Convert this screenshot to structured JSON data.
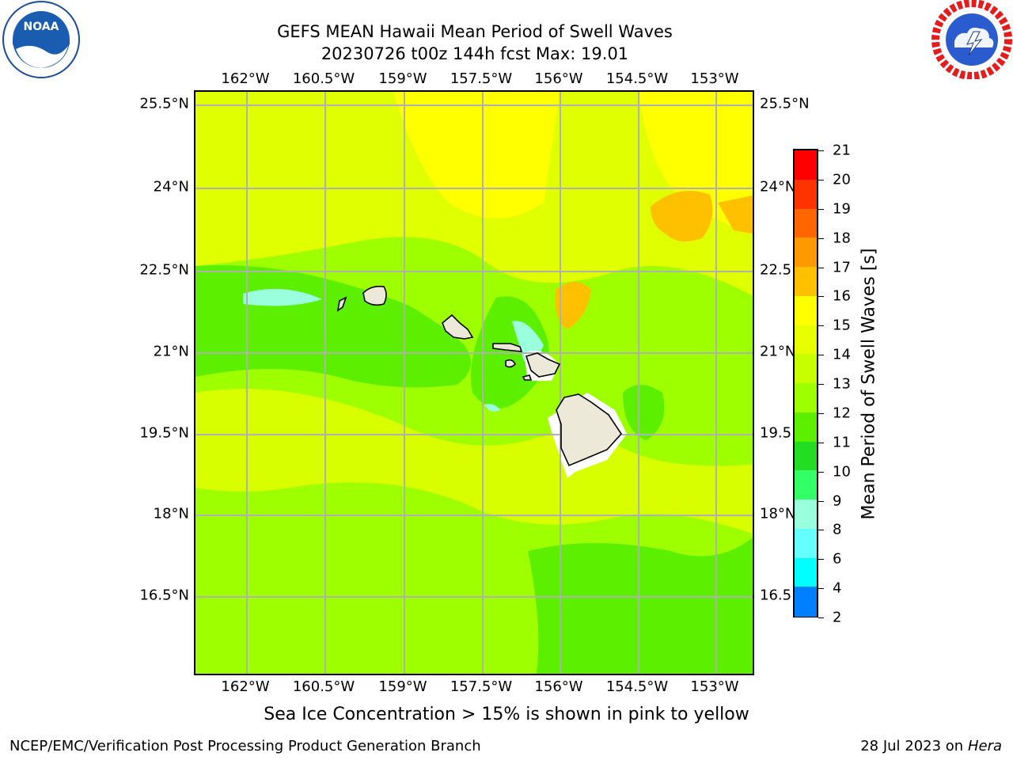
{
  "title": {
    "line1": "GEFS MEAN Hawaii Mean Period of Swell Waves",
    "line2": "20230726 t00z 144h fcst   Max: 19.01"
  },
  "logos": {
    "left": "noaa-logo",
    "left_text": "NOAA",
    "right": "nws-logo"
  },
  "map": {
    "lon_labels": [
      "162°W",
      "160.5°W",
      "159°W",
      "157.5°W",
      "156°W",
      "154.5°W",
      "153°W"
    ],
    "lat_labels": [
      "25.5°N",
      "24°N",
      "22.5°N",
      "21°N",
      "19.5°N",
      "18°N",
      "16.5°N"
    ],
    "background_color": "#9dff00",
    "grid_color": "#b0b0b0",
    "land_color": "#ece9d8"
  },
  "colorbar": {
    "title": "Mean Period of Swell Waves [s]",
    "levels": [
      "21",
      "20",
      "19",
      "18",
      "17",
      "16",
      "15",
      "14",
      "13",
      "12",
      "11",
      "10",
      "9",
      "8",
      "6",
      "4",
      "2"
    ],
    "colors": [
      "#ff0000",
      "#ff3300",
      "#ff6600",
      "#ff9900",
      "#ffc000",
      "#ffff00",
      "#e8ff00",
      "#c8ff00",
      "#9dff00",
      "#5cf000",
      "#22dd22",
      "#33ff66",
      "#99ffdd",
      "#66ffff",
      "#00ffff",
      "#0080ff",
      "#0000ff"
    ]
  },
  "note": "Sea Ice Concentration > 15% is shown in pink to yellow",
  "footer": {
    "left": "NCEP/EMC/Verification Post Processing Product Generation Branch",
    "date": "28 Jul 2023 on ",
    "machine": "Hera"
  }
}
